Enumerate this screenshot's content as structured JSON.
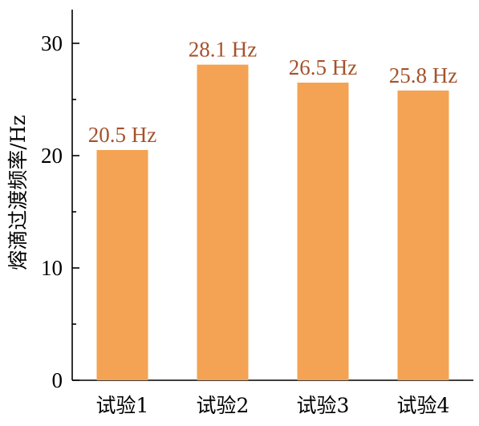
{
  "chart_data": {
    "type": "bar",
    "title": "",
    "xlabel": "",
    "ylabel": "熔滴过渡频率/Hz",
    "categories": [
      "试验1",
      "试验2",
      "试验3",
      "试验4"
    ],
    "values": [
      20.5,
      28.1,
      26.5,
      25.8
    ],
    "data_labels": [
      "20.5 Hz",
      "28.1 Hz",
      "26.5 Hz",
      "25.8 Hz"
    ],
    "ylim": [
      0,
      33
    ],
    "yticks": [
      0,
      10,
      20,
      30
    ],
    "ytick_labels": [
      "0",
      "10",
      "20",
      "30"
    ],
    "grid": false,
    "legend": "none",
    "colors": {
      "bar": "#F3A353",
      "data_label": "#A4522B",
      "axis": "#000000"
    }
  }
}
